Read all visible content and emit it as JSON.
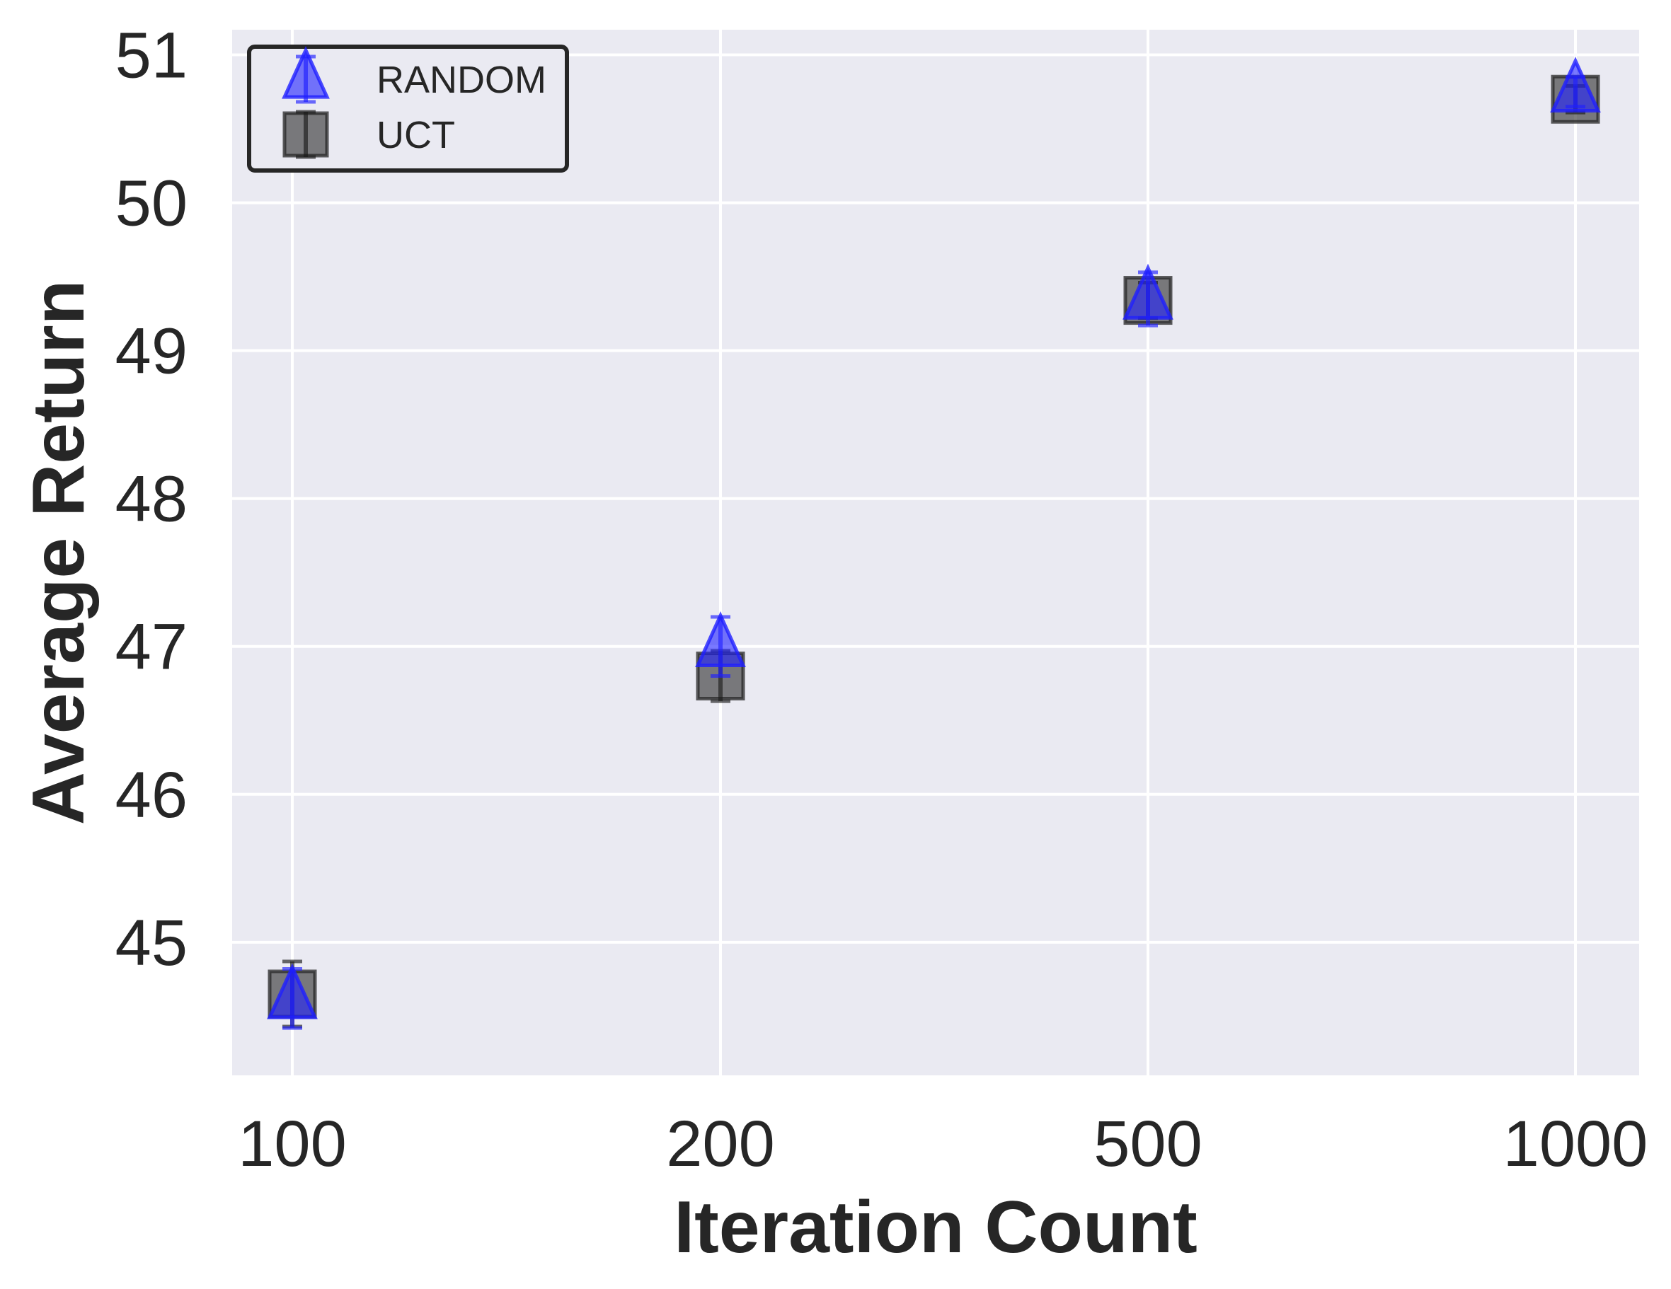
{
  "chart_data": {
    "type": "scatter",
    "xlabel": "Iteration Count",
    "ylabel": "Average Return",
    "categories": [
      "100",
      "200",
      "500",
      "1000"
    ],
    "ylim": [
      44.1,
      51.17
    ],
    "yticks": [
      45,
      46,
      47,
      48,
      49,
      50,
      51
    ],
    "grid": true,
    "legend_position": "top-left",
    "series": [
      {
        "name": "RANDOM",
        "marker": "triangle",
        "color": "#1f1fff",
        "values": [
          44.62,
          47.0,
          49.35,
          50.75
        ],
        "errors": [
          0.2,
          0.2,
          0.18,
          0.1
        ]
      },
      {
        "name": "UCT",
        "marker": "square",
        "color": "#3a3a3a",
        "values": [
          44.65,
          46.8,
          49.34,
          50.7
        ],
        "errors": [
          0.22,
          0.17,
          0.12,
          0.09
        ]
      }
    ]
  }
}
